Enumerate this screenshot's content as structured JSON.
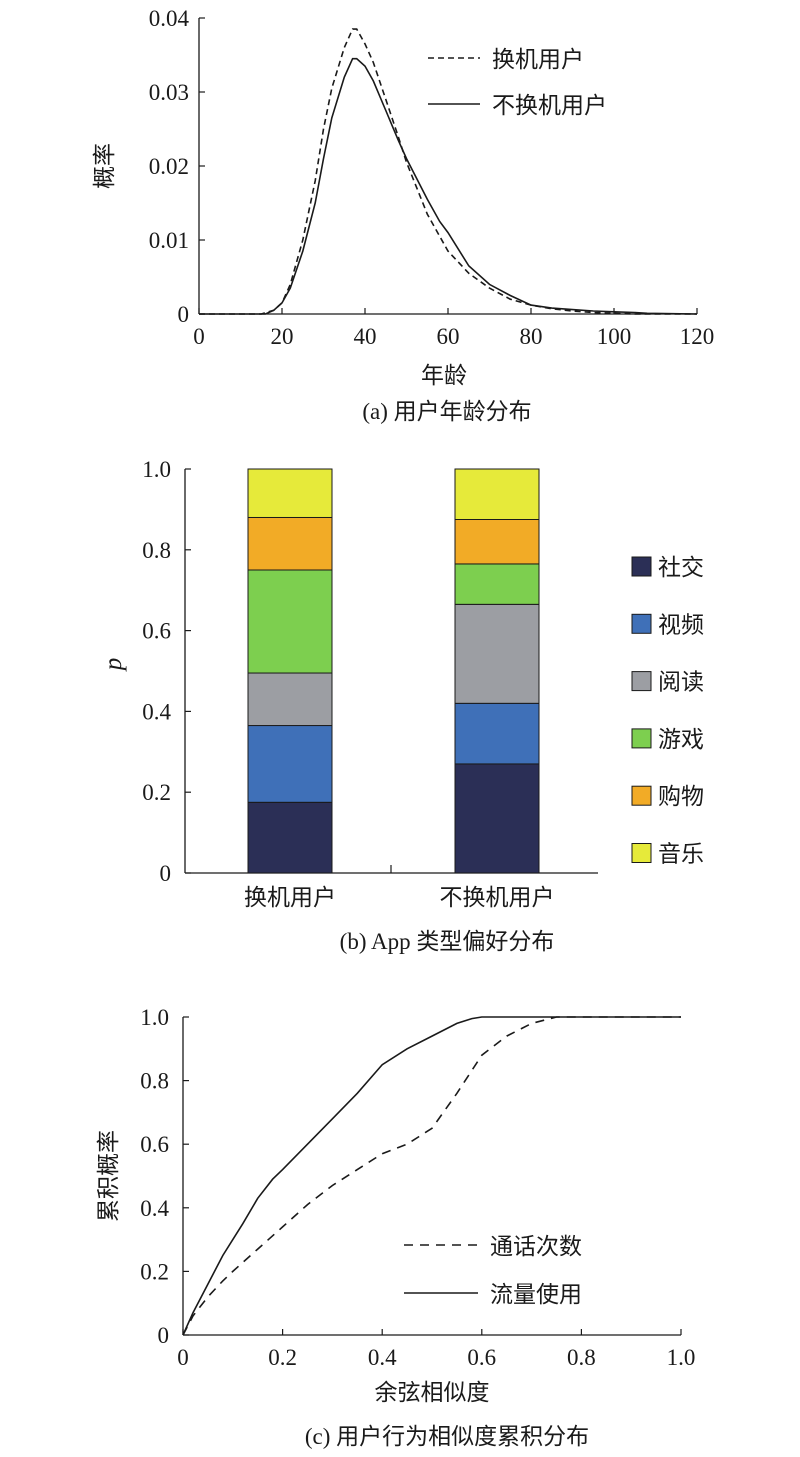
{
  "chart_data": [
    {
      "type": "line",
      "xlabel": "年龄",
      "ylabel": "概率",
      "caption": "(a) 用户年龄分布",
      "xlim": [
        0,
        120
      ],
      "ylim": [
        0,
        0.04
      ],
      "xticks": [
        "0",
        "20",
        "40",
        "60",
        "80",
        "100",
        "120"
      ],
      "yticks": [
        "0",
        "0.01",
        "0.02",
        "0.03",
        "0.04"
      ],
      "legend_position": "top-right",
      "series": [
        {
          "name": "换机用户",
          "dash": true,
          "x": [
            0,
            15,
            18,
            20,
            22,
            25,
            28,
            30,
            32,
            35,
            37,
            38,
            40,
            42,
            45,
            48,
            50,
            55,
            58,
            60,
            65,
            70,
            75,
            80,
            85,
            90,
            95,
            100,
            105,
            110,
            120
          ],
          "y": [
            0,
            0,
            0.0005,
            0.0015,
            0.004,
            0.01,
            0.018,
            0.025,
            0.0305,
            0.036,
            0.0385,
            0.0385,
            0.0365,
            0.034,
            0.029,
            0.024,
            0.0205,
            0.0135,
            0.0105,
            0.0085,
            0.0055,
            0.0035,
            0.002,
            0.0012,
            0.0007,
            0.0004,
            0.0002,
            0.0001,
            0,
            0,
            0
          ]
        },
        {
          "name": "不换机用户",
          "dash": false,
          "x": [
            0,
            16,
            18,
            20,
            22,
            25,
            28,
            30,
            32,
            35,
            37,
            38,
            40,
            42,
            45,
            48,
            50,
            55,
            58,
            60,
            65,
            70,
            75,
            80,
            85,
            90,
            95,
            100,
            105,
            108,
            120
          ],
          "y": [
            0,
            0,
            0.0005,
            0.0015,
            0.0035,
            0.0085,
            0.015,
            0.021,
            0.0265,
            0.032,
            0.0345,
            0.0345,
            0.0335,
            0.0315,
            0.0275,
            0.0235,
            0.021,
            0.0155,
            0.0125,
            0.011,
            0.0065,
            0.004,
            0.0025,
            0.0012,
            0.0008,
            0.0006,
            0.0004,
            0.0003,
            0.0002,
            0.0001,
            0
          ]
        }
      ]
    },
    {
      "type": "bar",
      "stacked": true,
      "ylabel": "p",
      "caption": "(b) App 类型偏好分布",
      "categories": [
        "换机用户",
        "不换机用户"
      ],
      "ylim": [
        0,
        1.0
      ],
      "yticks": [
        "0",
        "0.2",
        "0.4",
        "0.6",
        "0.8",
        "1.0"
      ],
      "legend_position": "right",
      "series": [
        {
          "name": "社交",
          "color": "#2b2f56",
          "values": [
            0.175,
            0.27
          ]
        },
        {
          "name": "视频",
          "color": "#3f70b8",
          "values": [
            0.19,
            0.15
          ]
        },
        {
          "name": "阅读",
          "color": "#9c9ea3",
          "values": [
            0.13,
            0.245
          ]
        },
        {
          "name": "游戏",
          "color": "#7dcf4f",
          "values": [
            0.255,
            0.1
          ]
        },
        {
          "name": "购物",
          "color": "#f2ab26",
          "values": [
            0.13,
            0.11
          ]
        },
        {
          "name": "音乐",
          "color": "#e6ea3a",
          "values": [
            0.12,
            0.125
          ]
        }
      ]
    },
    {
      "type": "line",
      "xlabel": "余弦相似度",
      "ylabel": "累积概率",
      "caption": "(c) 用户行为相似度累积分布",
      "xlim": [
        0,
        1.0
      ],
      "ylim": [
        0,
        1.0
      ],
      "xticks": [
        "0",
        "0.2",
        "0.4",
        "0.6",
        "0.8",
        "1.0"
      ],
      "yticks": [
        "0",
        "0.2",
        "0.4",
        "0.6",
        "0.8",
        "1.0"
      ],
      "legend_position": "bottom-right",
      "series": [
        {
          "name": "通话次数",
          "dash": true,
          "x": [
            0,
            0.02,
            0.05,
            0.08,
            0.1,
            0.15,
            0.2,
            0.25,
            0.3,
            0.35,
            0.4,
            0.45,
            0.5,
            0.55,
            0.6,
            0.65,
            0.7,
            0.75,
            0.8,
            1.0
          ],
          "y": [
            0,
            0.06,
            0.12,
            0.17,
            0.2,
            0.27,
            0.34,
            0.41,
            0.47,
            0.52,
            0.57,
            0.6,
            0.65,
            0.76,
            0.88,
            0.94,
            0.98,
            1.0,
            1.0,
            1.0
          ]
        },
        {
          "name": "流量使用",
          "dash": false,
          "x": [
            0,
            0.02,
            0.05,
            0.08,
            0.1,
            0.12,
            0.15,
            0.18,
            0.2,
            0.25,
            0.3,
            0.35,
            0.4,
            0.45,
            0.5,
            0.55,
            0.58,
            0.6,
            0.62,
            0.65,
            0.7,
            1.0
          ],
          "y": [
            0,
            0.07,
            0.16,
            0.25,
            0.3,
            0.35,
            0.43,
            0.49,
            0.52,
            0.6,
            0.68,
            0.76,
            0.85,
            0.9,
            0.94,
            0.98,
            0.995,
            1.0,
            1.0,
            1.0,
            1.0,
            1.0
          ]
        }
      ]
    }
  ]
}
